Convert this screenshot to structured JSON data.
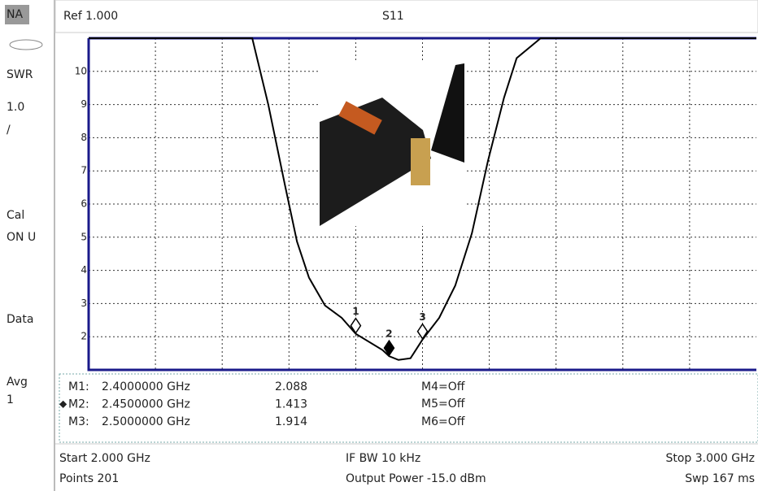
{
  "sidebar": [
    "NA",
    "SWR",
    "1.0",
    "/",
    "Cal",
    "ON U",
    "Data",
    "Avg",
    "1"
  ],
  "header": {
    "ref": "Ref 1.000",
    "measurement": "S11"
  },
  "chart_data": {
    "type": "line",
    "x": [
      2.0,
      2.245,
      2.269,
      2.294,
      2.312,
      2.33,
      2.354,
      2.379,
      2.4,
      2.44,
      2.45,
      2.464,
      2.482,
      2.5,
      2.525,
      2.549,
      2.574,
      2.598,
      2.622,
      2.641,
      2.677,
      3.0
    ],
    "series": [
      {
        "color": "#000000",
        "values": [
          11,
          11,
          9.0,
          6.57,
          4.87,
          3.78,
          2.94,
          2.57,
          2.088,
          1.6,
          1.413,
          1.3,
          1.35,
          1.914,
          2.57,
          3.54,
          5.12,
          7.3,
          9.2,
          10.4,
          11,
          11
        ]
      }
    ],
    "xlim": [
      2.0,
      3.0
    ],
    "ylim": [
      1,
      11
    ],
    "yticks": [
      2,
      3,
      4,
      5,
      6,
      7,
      8,
      9,
      10
    ],
    "xgrid": [
      2.1,
      2.2,
      2.3,
      2.4,
      2.5,
      2.6,
      2.7,
      2.8,
      2.9
    ],
    "markers": [
      {
        "label": "1",
        "name": "M1:",
        "freq": "2.4000000 GHz",
        "x": 2.4,
        "value": 2.088
      },
      {
        "label": "2",
        "name": "M2:",
        "freq": "2.4500000 GHz",
        "x": 2.45,
        "value": 1.413
      },
      {
        "label": "3",
        "name": "M3:",
        "freq": "2.5000000 GHz",
        "x": 2.5,
        "value": 1.914
      }
    ]
  },
  "marker_table": {
    "off": [
      "M4=Off",
      "M5=Off",
      "M6=Off"
    ]
  },
  "footer": {
    "start": "Start 2.000 GHz",
    "ifbw": "IF BW 10 kHz",
    "stop": "Stop 3.000 GHz",
    "points": "Points 201",
    "power": "Output Power -15.0 dBm",
    "sweep": "Swp 167 ms"
  }
}
